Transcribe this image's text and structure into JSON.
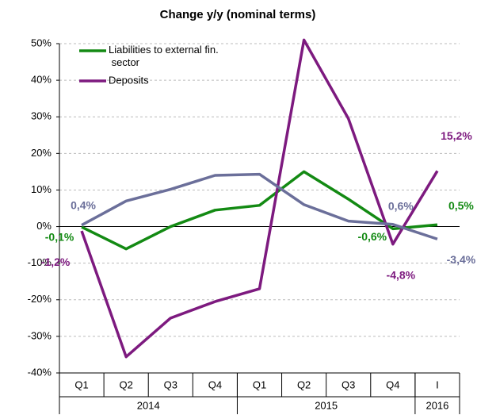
{
  "chart_data": {
    "type": "line",
    "title": "Change y/y (nominal terms)",
    "categories": [
      "Q1",
      "Q2",
      "Q3",
      "Q4",
      "Q1",
      "Q2",
      "Q3",
      "Q4",
      "I"
    ],
    "x_groups": [
      {
        "label": "2014",
        "count": 4
      },
      {
        "label": "2015",
        "count": 4
      },
      {
        "label": "2016",
        "count": 1
      }
    ],
    "series": [
      {
        "name": "Liabilities to external fin. sector",
        "color": "#138a13",
        "values": [
          -0.1,
          -6.1,
          0,
          4.5,
          5.8,
          15,
          7.5,
          -0.6,
          0.5
        ],
        "value_labels": [
          "-0,1%",
          null,
          null,
          null,
          null,
          null,
          null,
          "-0,6%",
          "0,5%"
        ]
      },
      {
        "name": "Deposits",
        "color": "#7d1a7f",
        "values": [
          -1.2,
          -35.6,
          -25,
          -20.5,
          -17,
          51,
          29.5,
          -4.8,
          15.2
        ],
        "value_labels": [
          "-1,2%",
          null,
          null,
          null,
          null,
          null,
          null,
          "-4,8%",
          "15,2%"
        ]
      },
      {
        "color": "#6b6f9a",
        "values": [
          0.4,
          7,
          10.2,
          14,
          14.3,
          6,
          1.5,
          0.6,
          -3.4
        ],
        "value_labels": [
          "0,4%",
          null,
          null,
          null,
          null,
          null,
          null,
          "0,6%",
          "-3,4%"
        ]
      }
    ],
    "ylim": [
      -40,
      50
    ],
    "yticks": [
      {
        "value": -40,
        "label": "-40%"
      },
      {
        "value": -30,
        "label": "-30%"
      },
      {
        "value": -20,
        "label": "-20%"
      },
      {
        "value": -10,
        "label": "-10%"
      },
      {
        "value": 0,
        "label": "0%"
      },
      {
        "value": 10,
        "label": "10%"
      },
      {
        "value": 20,
        "label": "20%"
      },
      {
        "value": 30,
        "label": "30%"
      },
      {
        "value": 40,
        "label": "40%"
      },
      {
        "value": 50,
        "label": "50%"
      }
    ],
    "grid": true,
    "legend": "upper left"
  }
}
